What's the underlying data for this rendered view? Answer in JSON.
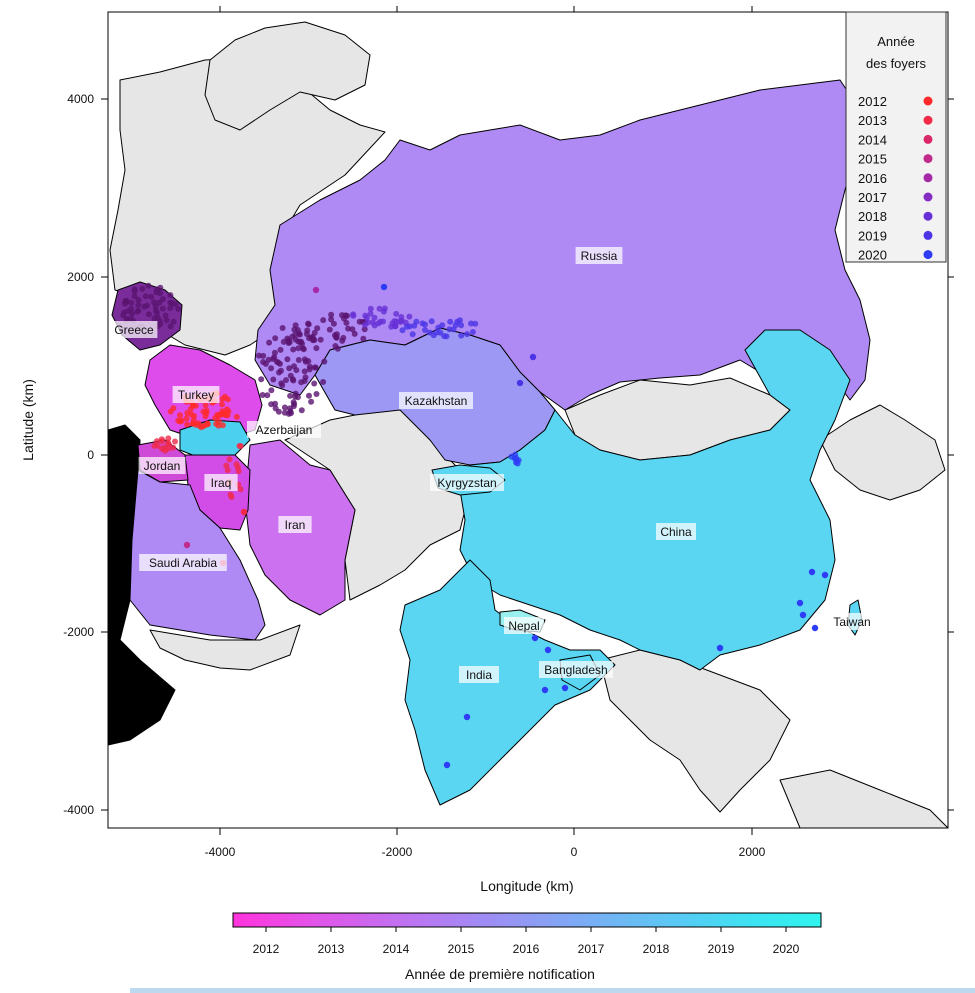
{
  "axes": {
    "xlabel": "Longitude (km)",
    "ylabel": "Latitude (km)",
    "xticks": [
      "-4000",
      "-2000",
      "0",
      "2000"
    ],
    "yticks": [
      "4000",
      "2000",
      "0",
      "-2000",
      "-4000"
    ]
  },
  "countries": {
    "russia": "Russia",
    "kazakhstan": "Kazakhstan",
    "china": "China",
    "india": "India",
    "iran": "Iran",
    "turkey": "Turkey",
    "greece": "Greece",
    "azerbaijan": "Azerbaijan",
    "jordan": "Jordan",
    "iraq": "Iraq",
    "saudi_arabia": "Saudi Arabia",
    "kyrgyzstan": "Kyrgyzstan",
    "nepal": "Nepal",
    "bangladesh": "Bangladesh",
    "taiwan": "Taiwan"
  },
  "legend": {
    "title_line1": "Année",
    "title_line2": "des foyers",
    "entries": [
      {
        "year": "2012",
        "color": "#ff2a2a"
      },
      {
        "year": "2013",
        "color": "#f02a48"
      },
      {
        "year": "2014",
        "color": "#d8286a"
      },
      {
        "year": "2015",
        "color": "#c02a8a"
      },
      {
        "year": "2016",
        "color": "#a42aa8"
      },
      {
        "year": "2017",
        "color": "#862cc2"
      },
      {
        "year": "2018",
        "color": "#6630d6"
      },
      {
        "year": "2019",
        "color": "#4a34e6"
      },
      {
        "year": "2020",
        "color": "#2f3cf5"
      }
    ]
  },
  "colorbar": {
    "title": "Année de première notification",
    "labels": [
      "2012",
      "2013",
      "2014",
      "2015",
      "2016",
      "2017",
      "2018",
      "2019",
      "2020"
    ],
    "colors": [
      "#ff33dd",
      "#e84ee8",
      "#cf64ee",
      "#b67af2",
      "#9c8ff4",
      "#84a4f4",
      "#6cb9f4",
      "#54cef4",
      "#3ce4f2",
      "#2ff4ee"
    ]
  }
}
